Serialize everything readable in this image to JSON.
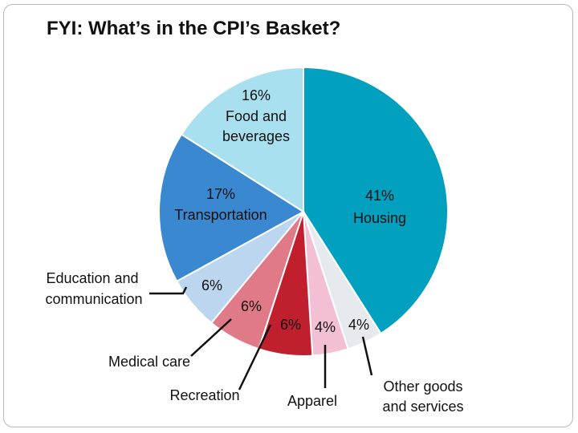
{
  "title": "FYI: What’s in the CPI’s Basket?",
  "chart_data": {
    "type": "pie",
    "title": "FYI: What’s in the CPI’s Basket?",
    "slices": [
      {
        "key": "housing",
        "label": "Housing",
        "value": 41,
        "value_label": "41%",
        "color": "#00a0be"
      },
      {
        "key": "other",
        "label": "Other goods and services",
        "value": 4,
        "value_label": "4%",
        "color": "#e6eaee"
      },
      {
        "key": "apparel",
        "label": "Apparel",
        "value": 4,
        "value_label": "4%",
        "color": "#f2bfd4"
      },
      {
        "key": "recreation",
        "label": "Recreation",
        "value": 6,
        "value_label": "6%",
        "color": "#c0202e"
      },
      {
        "key": "medical",
        "label": "Medical care",
        "value": 6,
        "value_label": "6%",
        "color": "#e07a88"
      },
      {
        "key": "education",
        "label": "Education and communication",
        "value": 6,
        "value_label": "6%",
        "color": "#bcd6f0"
      },
      {
        "key": "transportation",
        "label": "Transportation",
        "value": 17,
        "value_label": "17%",
        "color": "#3a88d0"
      },
      {
        "key": "food",
        "label": "Food and beverages",
        "value": 16,
        "value_label": "16%",
        "color": "#a8e0f0"
      }
    ],
    "texts": {
      "food_line1": "Food and",
      "food_line2": "beverages",
      "education_line1": "Education and",
      "education_line2": "communication",
      "other_line1": "Other goods",
      "other_line2": "and services"
    }
  }
}
